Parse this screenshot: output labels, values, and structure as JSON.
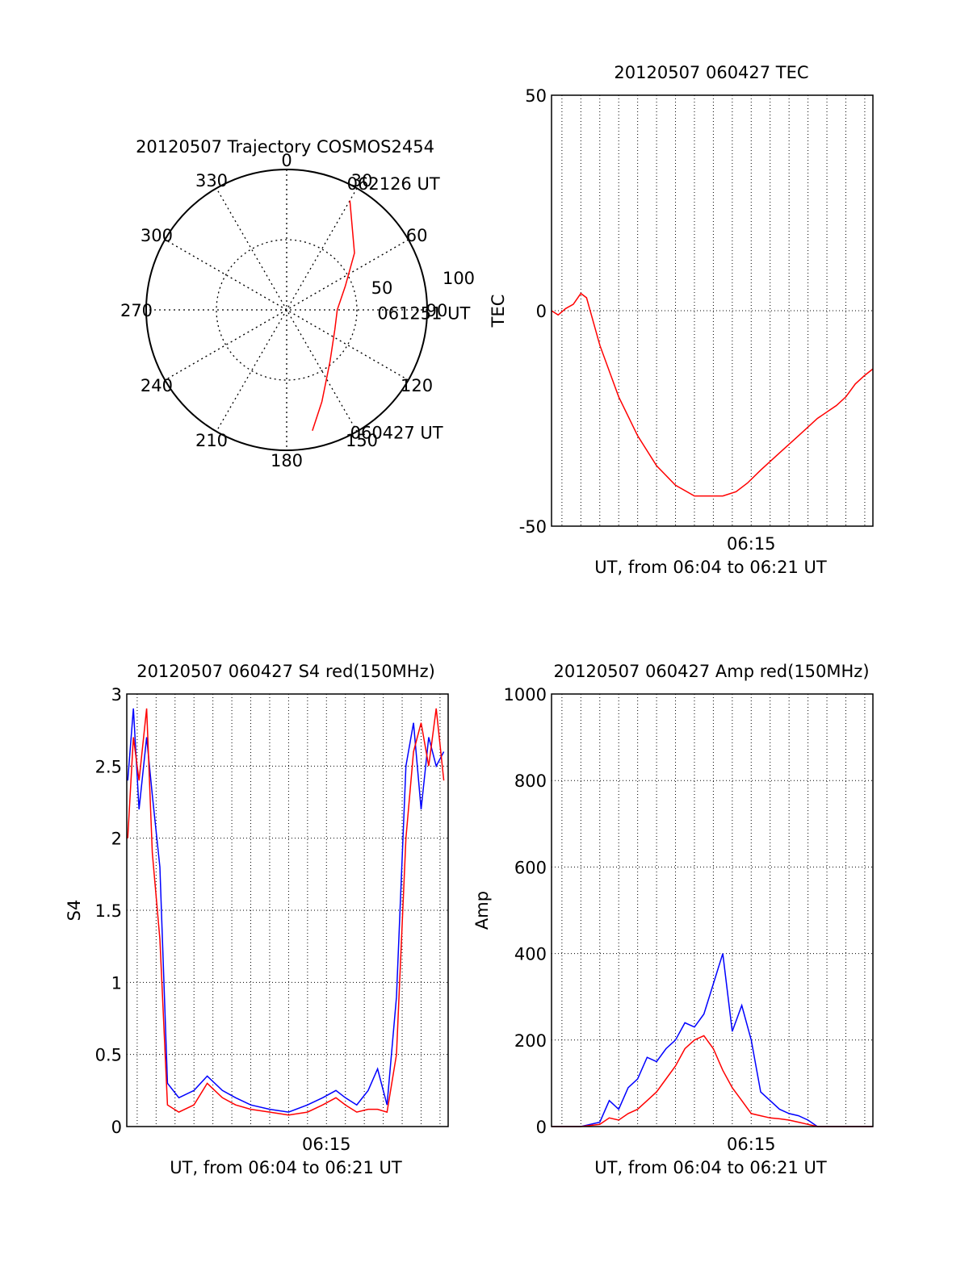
{
  "chart_data": [
    {
      "type": "polar",
      "title": "20120507 Trajectory COSMOS2454",
      "azimuth_labels": [
        "0",
        "30",
        "60",
        "90",
        "120",
        "150",
        "180",
        "210",
        "240",
        "270",
        "300",
        "330"
      ],
      "elevation_ring_labels": [
        "50",
        "100"
      ],
      "radius_max": 100,
      "trajectory": [
        {
          "az": 168,
          "r": 88
        },
        {
          "az": 159,
          "r": 70
        },
        {
          "az": 140,
          "r": 48
        },
        {
          "az": 112,
          "r": 37
        },
        {
          "az": 90,
          "r": 36
        },
        {
          "az": 68,
          "r": 45
        },
        {
          "az": 50,
          "r": 63
        },
        {
          "az": 30,
          "r": 90
        }
      ],
      "annotations": [
        {
          "text": "062126 UT",
          "az": 23,
          "r": 98
        },
        {
          "text": "061251 UT",
          "az": 92,
          "r": 60
        },
        {
          "text": "060427 UT",
          "az": 155,
          "r": 96
        }
      ],
      "line_color": "#ff0000"
    },
    {
      "type": "line",
      "title": "20120507 060427 TEC",
      "xlabel": "UT, from 06:04 to 06:21 UT",
      "ylabel": "TEC",
      "xlim": [
        364.45,
        381.43
      ],
      "ylim": [
        -50,
        50
      ],
      "yticks": [
        "50",
        "0",
        "-50"
      ],
      "xticks": [
        {
          "value": 375,
          "label": "06:15"
        }
      ],
      "grid": true,
      "series": [
        {
          "color": "#ff0000",
          "x": [
            364.45,
            364.8,
            365.2,
            365.6,
            366.0,
            366.3,
            367.0,
            368.0,
            369.0,
            370.0,
            371.0,
            372.0,
            373.0,
            373.5,
            374.2,
            374.8,
            375.5,
            376.5,
            377.5,
            378.5,
            379.5,
            380.0,
            380.5,
            381.0,
            381.43
          ],
          "y": [
            0,
            -1,
            0.5,
            1.5,
            4,
            3,
            -8,
            -20,
            -29,
            -36,
            -40.5,
            -43,
            -43,
            -43,
            -42,
            -40,
            -37,
            -33,
            -29,
            -25,
            -22,
            -20,
            -17,
            -15,
            -13.5
          ]
        }
      ]
    },
    {
      "type": "line",
      "title": "20120507 060427 S4 red(150MHz)",
      "xlabel": "UT, from 06:04 to 06:21 UT",
      "ylabel": "S4",
      "xlim": [
        364.45,
        381.43
      ],
      "ylim": [
        0,
        3
      ],
      "yticks": [
        "3",
        "2.5",
        "2",
        "1.5",
        "1",
        "0.5",
        "0"
      ],
      "xticks": [
        {
          "value": 375,
          "label": "06:15"
        }
      ],
      "grid": true,
      "series": [
        {
          "color": "#0000ff",
          "x": [
            364.5,
            364.8,
            365.1,
            365.5,
            365.8,
            366.2,
            366.6,
            367.2,
            368.0,
            368.7,
            369.5,
            370.2,
            371.0,
            372.0,
            373.0,
            374.0,
            374.8,
            375.5,
            376.0,
            376.6,
            377.2,
            377.7,
            378.2,
            378.7,
            379.2,
            379.6,
            380.0,
            380.4,
            380.8,
            381.2
          ],
          "y": [
            2.4,
            2.9,
            2.2,
            2.7,
            2.3,
            1.8,
            0.3,
            0.2,
            0.25,
            0.35,
            0.25,
            0.2,
            0.15,
            0.12,
            0.1,
            0.15,
            0.2,
            0.25,
            0.2,
            0.15,
            0.25,
            0.4,
            0.15,
            0.9,
            2.5,
            2.8,
            2.2,
            2.7,
            2.5,
            2.6
          ]
        },
        {
          "color": "#ff0000",
          "x": [
            364.5,
            364.8,
            365.1,
            365.5,
            365.8,
            366.2,
            366.6,
            367.2,
            368.0,
            368.7,
            369.5,
            370.2,
            371.0,
            372.0,
            373.0,
            374.0,
            374.8,
            375.5,
            376.0,
            376.6,
            377.2,
            377.7,
            378.2,
            378.7,
            379.2,
            379.6,
            380.0,
            380.4,
            380.8,
            381.2
          ],
          "y": [
            2.0,
            2.7,
            2.4,
            2.9,
            1.9,
            1.3,
            0.15,
            0.1,
            0.15,
            0.3,
            0.2,
            0.15,
            0.12,
            0.1,
            0.08,
            0.1,
            0.15,
            0.2,
            0.15,
            0.1,
            0.12,
            0.12,
            0.1,
            0.5,
            2.0,
            2.6,
            2.8,
            2.5,
            2.9,
            2.4
          ]
        }
      ]
    },
    {
      "type": "line",
      "title": "20120507 060427 Amp red(150MHz)",
      "xlabel": "UT, from 06:04 to 06:21 UT",
      "ylabel": "Amp",
      "xlim": [
        364.45,
        381.43
      ],
      "ylim": [
        0,
        1000
      ],
      "yticks": [
        "1000",
        "800",
        "600",
        "400",
        "200",
        "0"
      ],
      "xticks": [
        {
          "value": 375,
          "label": "06:15"
        }
      ],
      "grid": true,
      "series": [
        {
          "color": "#0000ff",
          "x": [
            364.45,
            366.0,
            367.0,
            367.5,
            368.0,
            368.5,
            369.0,
            369.5,
            370.0,
            370.5,
            371.0,
            371.5,
            372.0,
            372.5,
            373.0,
            373.5,
            374.0,
            374.5,
            375.0,
            375.5,
            376.0,
            376.5,
            377.0,
            377.5,
            378.0,
            378.5,
            379.0,
            380.0,
            381.43
          ],
          "y": [
            0,
            0,
            10,
            60,
            40,
            90,
            110,
            160,
            150,
            180,
            200,
            240,
            230,
            260,
            330,
            400,
            220,
            280,
            200,
            80,
            60,
            40,
            30,
            25,
            15,
            0,
            0,
            0,
            0
          ]
        },
        {
          "color": "#ff0000",
          "x": [
            364.45,
            366.0,
            367.0,
            367.5,
            368.0,
            368.5,
            369.0,
            369.5,
            370.0,
            370.5,
            371.0,
            371.5,
            372.0,
            372.5,
            373.0,
            373.5,
            374.0,
            374.5,
            375.0,
            375.5,
            376.0,
            376.5,
            377.0,
            377.5,
            378.0,
            378.5,
            379.0,
            380.0,
            381.43
          ],
          "y": [
            0,
            0,
            5,
            20,
            15,
            30,
            40,
            60,
            80,
            110,
            140,
            180,
            200,
            210,
            180,
            130,
            90,
            60,
            30,
            25,
            20,
            18,
            15,
            10,
            5,
            0,
            0,
            0,
            0
          ]
        }
      ]
    }
  ]
}
